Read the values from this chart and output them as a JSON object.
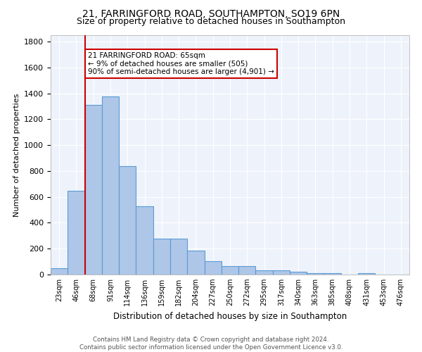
{
  "title": "21, FARRINGFORD ROAD, SOUTHAMPTON, SO19 6PN",
  "subtitle": "Size of property relative to detached houses in Southampton",
  "xlabel": "Distribution of detached houses by size in Southampton",
  "ylabel": "Number of detached properties",
  "categories": [
    "23sqm",
    "46sqm",
    "68sqm",
    "91sqm",
    "114sqm",
    "136sqm",
    "159sqm",
    "182sqm",
    "204sqm",
    "227sqm",
    "250sqm",
    "272sqm",
    "295sqm",
    "317sqm",
    "340sqm",
    "363sqm",
    "385sqm",
    "408sqm",
    "431sqm",
    "453sqm",
    "476sqm"
  ],
  "values": [
    50,
    645,
    1310,
    1375,
    840,
    530,
    275,
    275,
    185,
    105,
    65,
    65,
    35,
    35,
    20,
    10,
    10,
    0,
    10,
    0,
    0
  ],
  "bar_color": "#aec6e8",
  "bar_edge_color": "#5b9bd5",
  "vline_x": 1.5,
  "vline_color": "#cc0000",
  "annotation_text": "21 FARRINGFORD ROAD: 65sqm\n← 9% of detached houses are smaller (505)\n90% of semi-detached houses are larger (4,901) →",
  "annotation_box_color": "#ffffff",
  "annotation_box_edge_color": "#cc0000",
  "ylim": [
    0,
    1850
  ],
  "yticks": [
    0,
    200,
    400,
    600,
    800,
    1000,
    1200,
    1400,
    1600,
    1800
  ],
  "bg_color": "#eef3fb",
  "grid_color": "#ffffff",
  "title_fontsize": 10,
  "subtitle_fontsize": 9,
  "footer_text": "Contains HM Land Registry data © Crown copyright and database right 2024.\nContains public sector information licensed under the Open Government Licence v3.0."
}
